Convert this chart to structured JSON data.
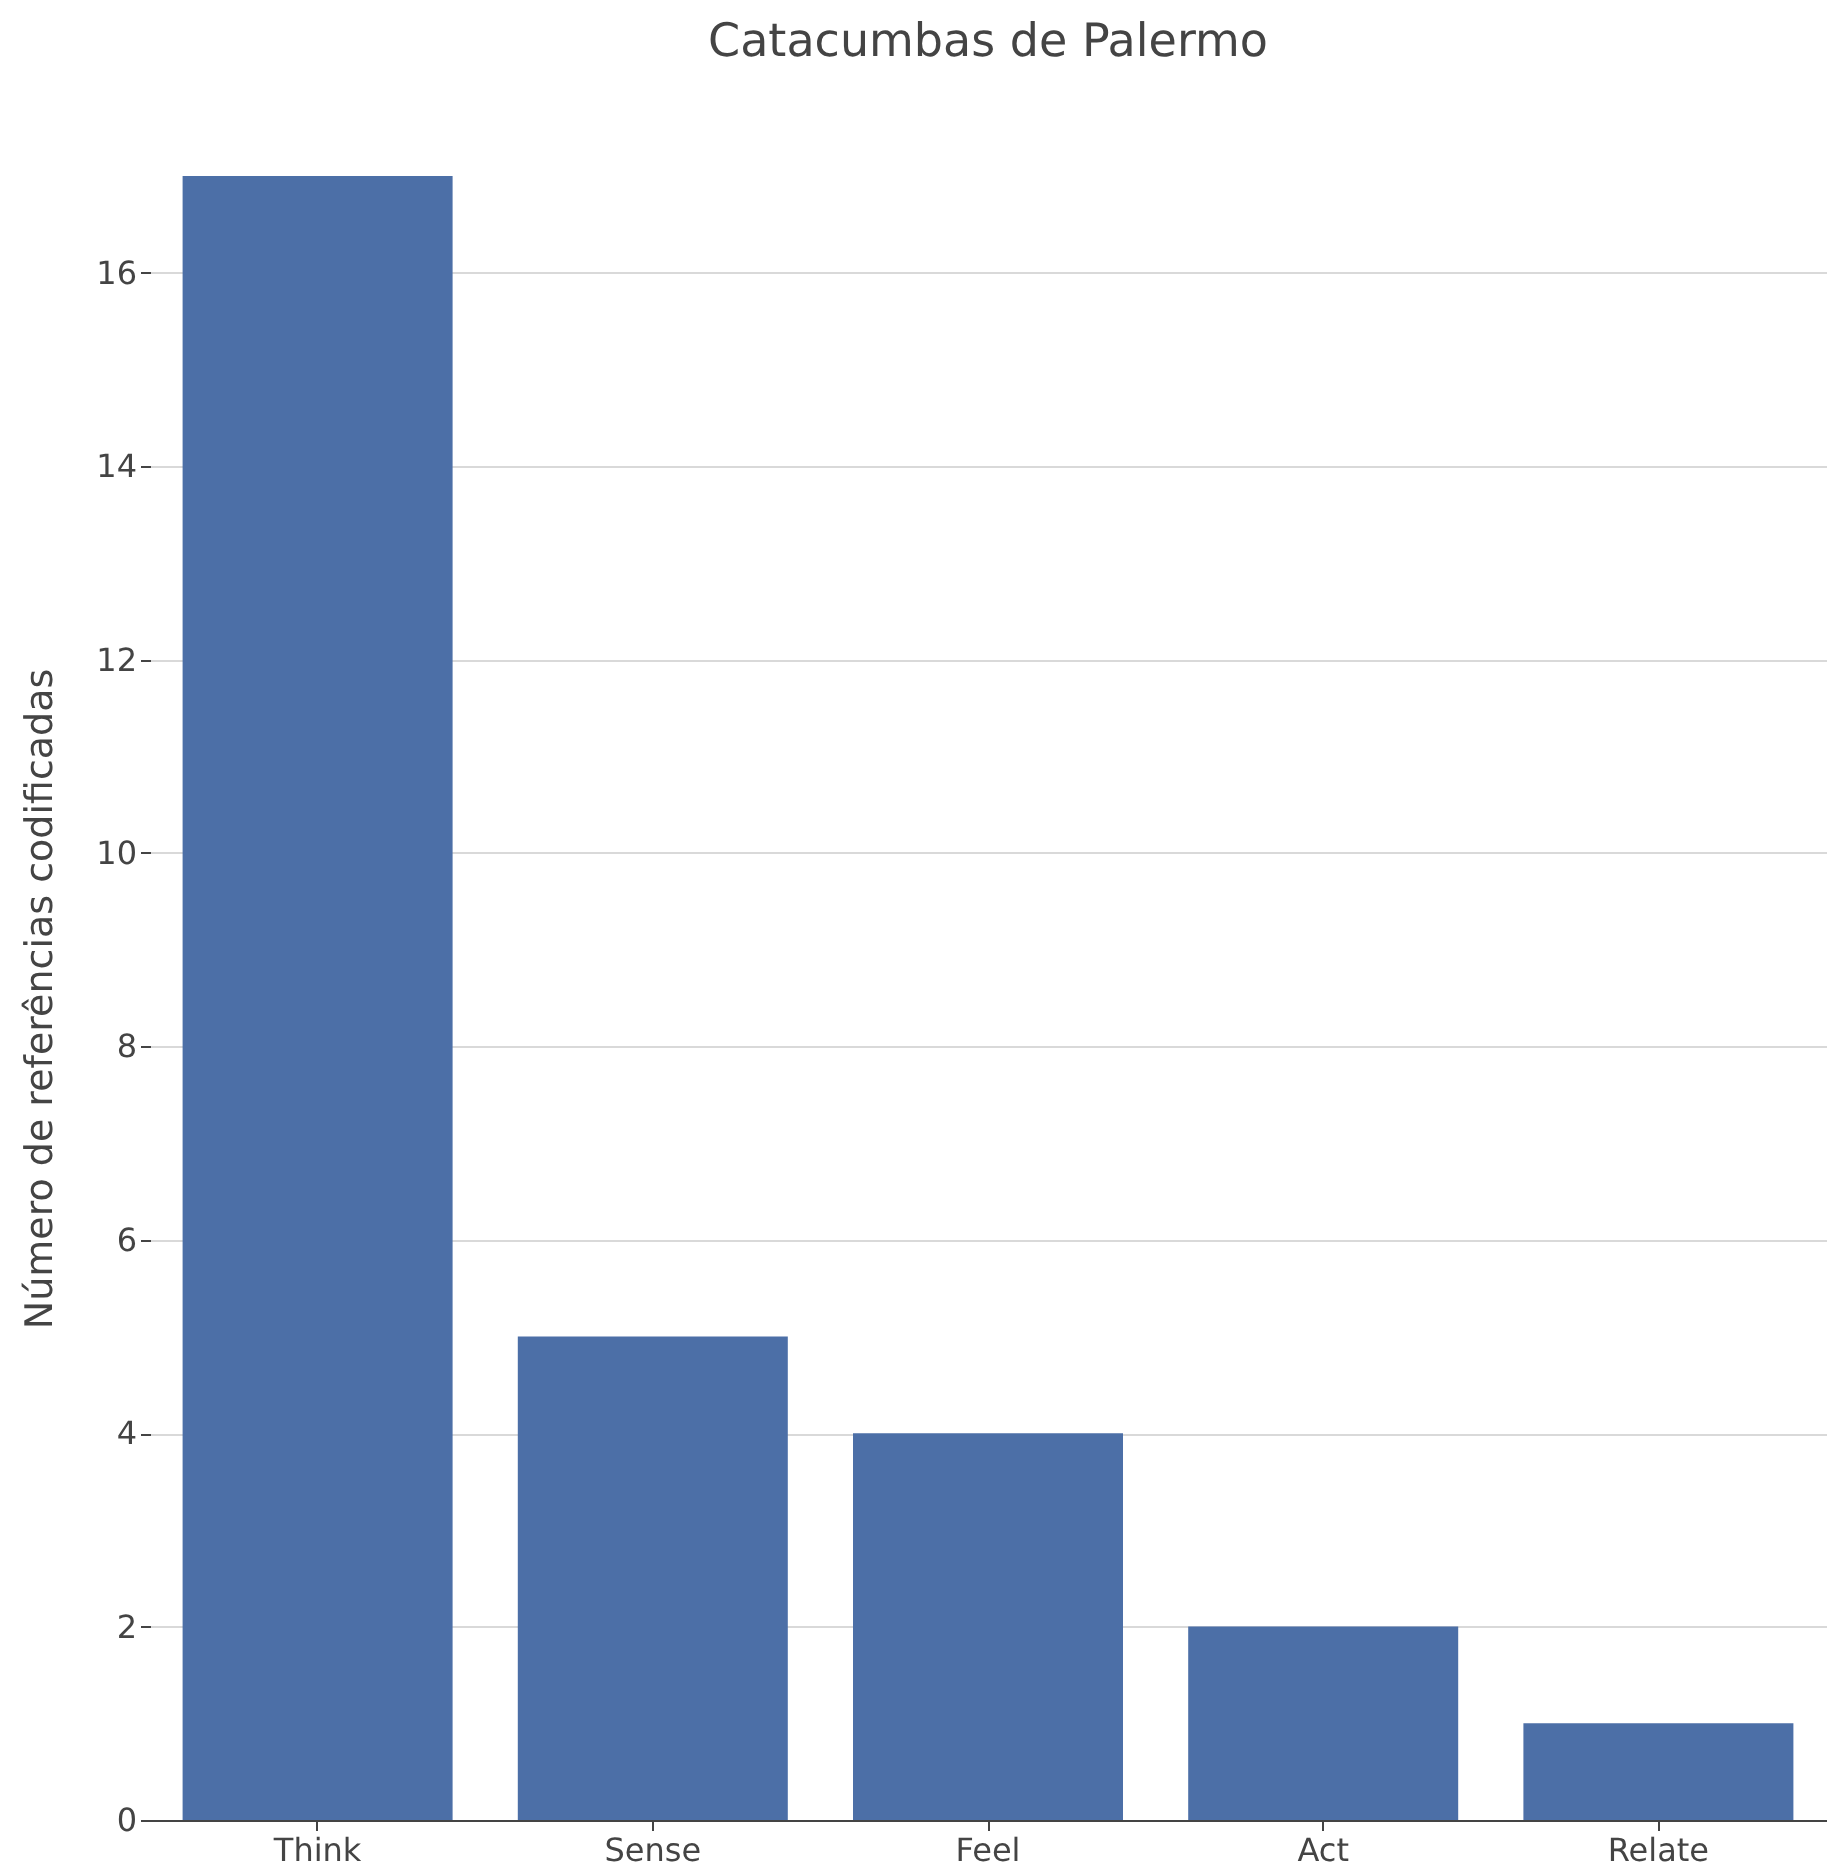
{
  "chart_data": {
    "type": "bar",
    "title": "Catacumbas de Palermo",
    "ylabel": "Número de referências codificadas",
    "categories": [
      "Think",
      "Sense",
      "Feel",
      "Act",
      "Relate"
    ],
    "values": [
      17,
      5,
      4,
      2,
      1
    ],
    "color": "#4c6fa7",
    "ylim": [
      0,
      17
    ],
    "yticks": [
      0,
      2,
      4,
      6,
      8,
      10,
      12,
      14,
      16
    ],
    "grid": "y"
  }
}
